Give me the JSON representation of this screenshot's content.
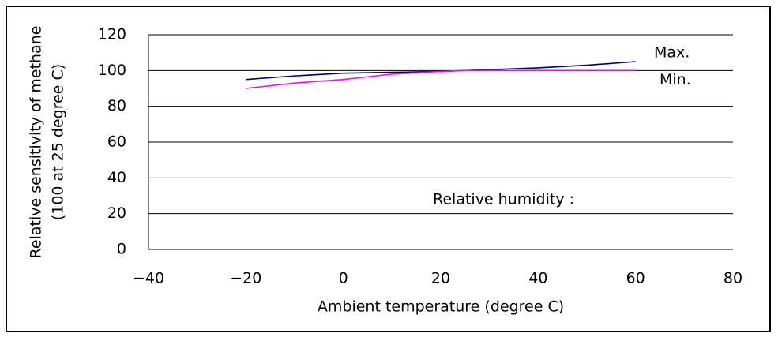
{
  "chart_data": {
    "type": "line",
    "x": [
      -20,
      -10,
      0,
      10,
      20,
      25,
      30,
      40,
      50,
      60
    ],
    "series": [
      {
        "name": "Max.",
        "color": "#000066",
        "values": [
          95,
          97,
          98.5,
          99,
          99.5,
          100,
          100.5,
          101.5,
          103,
          105
        ]
      },
      {
        "name": "Min.",
        "color": "#ff00ff",
        "values": [
          90,
          93,
          95,
          98,
          99.5,
          100,
          100,
          100,
          100,
          100
        ]
      }
    ],
    "annotation": "Relative humidity :",
    "x_label": "Ambient temperature (degree C)",
    "y_label": [
      "Relative sensitivity of methane",
      "(100 at 25 degree C)"
    ],
    "xlim": [
      -40,
      80
    ],
    "xticks": [
      {
        "value": -40,
        "label": "−40"
      },
      {
        "value": -20,
        "label": "−20"
      },
      0,
      20,
      40,
      60,
      80
    ],
    "ylim": [
      0,
      120
    ],
    "yticks": [
      0,
      20,
      40,
      60,
      80,
      100,
      120
    ],
    "grid": true
  }
}
